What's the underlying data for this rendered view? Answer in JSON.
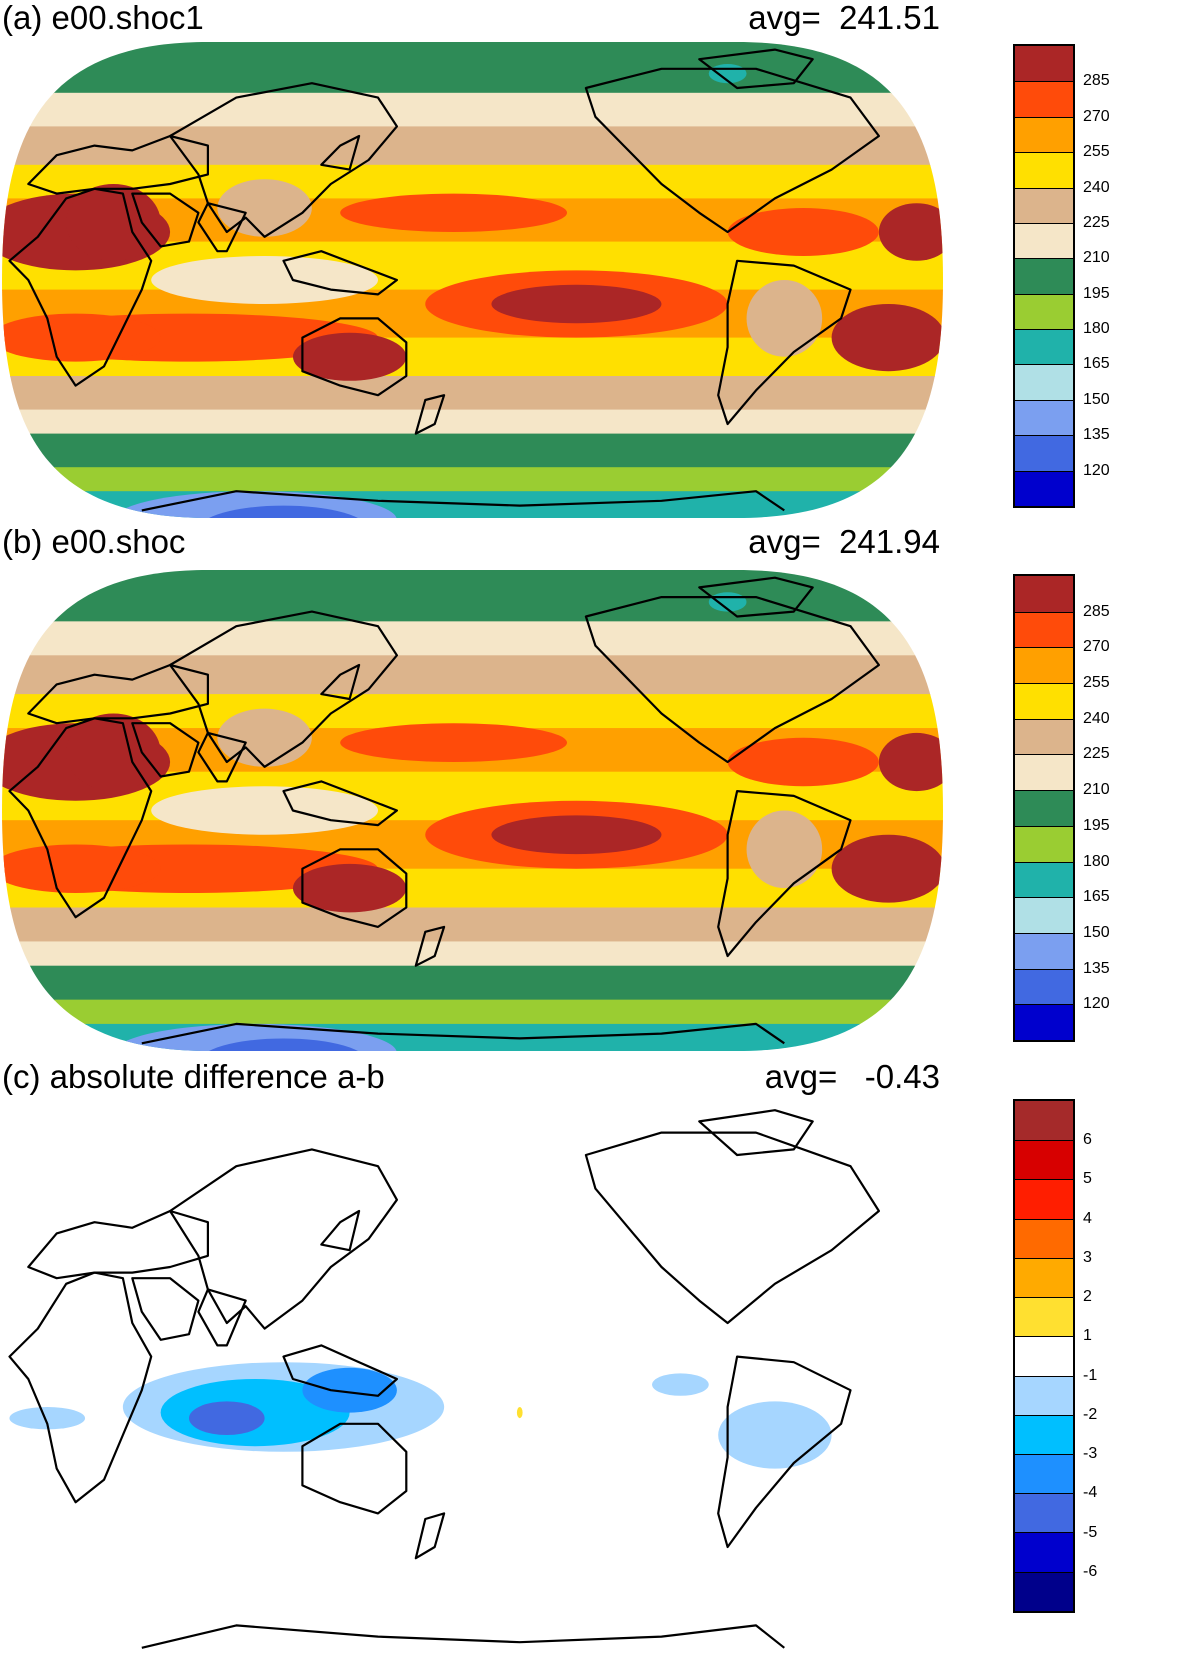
{
  "panels": [
    {
      "title": "(a) e00.shoc1",
      "avg_text": "avg=  241.51",
      "colorbar": {
        "colors": [
          "#ab2626",
          "#ff4b0a",
          "#ffa000",
          "#ffe000",
          "#dcb48c",
          "#f5e6c8",
          "#2e8b57",
          "#9acd32",
          "#20b2aa",
          "#b0e0e6",
          "#7b9ff0",
          "#4169e1",
          "#0000cd"
        ],
        "labels": [
          "285",
          "270",
          "255",
          "240",
          "225",
          "210",
          "195",
          "180",
          "165",
          "150",
          "135",
          "120"
        ]
      }
    },
    {
      "title": "(b) e00.shoc",
      "avg_text": "avg=  241.94",
      "colorbar": {
        "colors": [
          "#ab2626",
          "#ff4b0a",
          "#ffa000",
          "#ffe000",
          "#dcb48c",
          "#f5e6c8",
          "#2e8b57",
          "#9acd32",
          "#20b2aa",
          "#b0e0e6",
          "#7b9ff0",
          "#4169e1",
          "#0000cd"
        ],
        "labels": [
          "285",
          "270",
          "255",
          "240",
          "225",
          "210",
          "195",
          "180",
          "165",
          "150",
          "135",
          "120"
        ]
      }
    },
    {
      "title": "(c) absolute difference a-b",
      "avg_text": "avg=   -0.43",
      "colorbar": {
        "colors": [
          "#a52a2a",
          "#d70000",
          "#ff1e00",
          "#ff6a00",
          "#ffaa00",
          "#ffe030",
          "#ffffff",
          "#a6d6ff",
          "#00bfff",
          "#1e90ff",
          "#4169e1",
          "#0000cd",
          "#00008b"
        ],
        "labels": [
          "6",
          "5",
          "4",
          "3",
          "2",
          "1",
          "-1",
          "-2",
          "-3",
          "-4",
          "-5",
          "-6"
        ]
      }
    }
  ],
  "map_colors": {
    "ocean_border": "#000000",
    "diff_background": "#ffffff",
    "land_line": "#000000"
  }
}
